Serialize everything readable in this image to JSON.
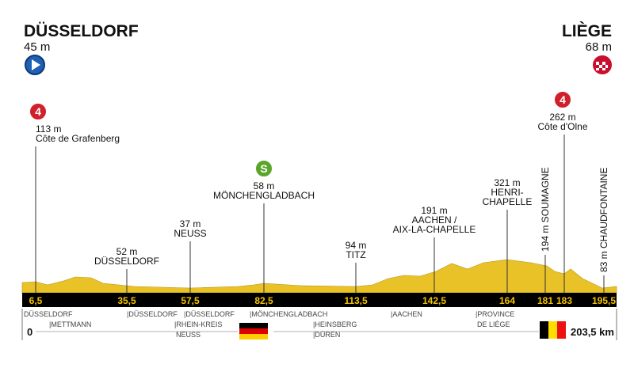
{
  "start": {
    "name": "DÜSSELDORF",
    "altitude": "45 m"
  },
  "finish": {
    "name": "LIÈGE",
    "altitude": "68 m"
  },
  "points": [
    {
      "km": "6,5",
      "badge": "4",
      "lines": [
        "113 m",
        "Côte de Grafenberg"
      ]
    },
    {
      "km": "35,5",
      "lines": [
        "52 m",
        "DÜSSELDORF"
      ]
    },
    {
      "km": "57,5",
      "lines": [
        "37 m",
        "NEUSS"
      ]
    },
    {
      "km": "82,5",
      "badge": "S",
      "lines": [
        "58 m",
        "MÖNCHENGLADBACH"
      ]
    },
    {
      "km": "113,5",
      "lines": [
        "94 m",
        "TITZ"
      ]
    },
    {
      "km": "142,5",
      "lines": [
        "191 m",
        "AACHEN /",
        "AIX-LA-CHAPELLE"
      ]
    },
    {
      "km": "164",
      "lines": [
        "321 m",
        "HENRI-",
        "CHAPELLE"
      ]
    },
    {
      "km": "181",
      "vertical": true,
      "lines": [
        "194 m SOUMAGNE"
      ]
    },
    {
      "km": "183",
      "badge": "4",
      "lines": [
        "262 m",
        "Côte d'Olne"
      ]
    },
    {
      "km": "195,5",
      "vertical": true,
      "lines": [
        "83 m CHAUDFONTAINE"
      ]
    }
  ],
  "regions": [
    "DÜSSELDORF",
    "|METTMANN",
    "|DÜSSELDORF",
    "|RHEIN-KREIS",
    "NEUSS",
    "|DÜSSELDORF",
    "|MÖNCHENGLADBACH",
    "|HEINSBERG",
    "|DÜREN",
    "|AACHEN",
    "|PROVINCE",
    "DE LIÈGE"
  ],
  "distance_start": "0",
  "distance_end": "203,5 km"
}
